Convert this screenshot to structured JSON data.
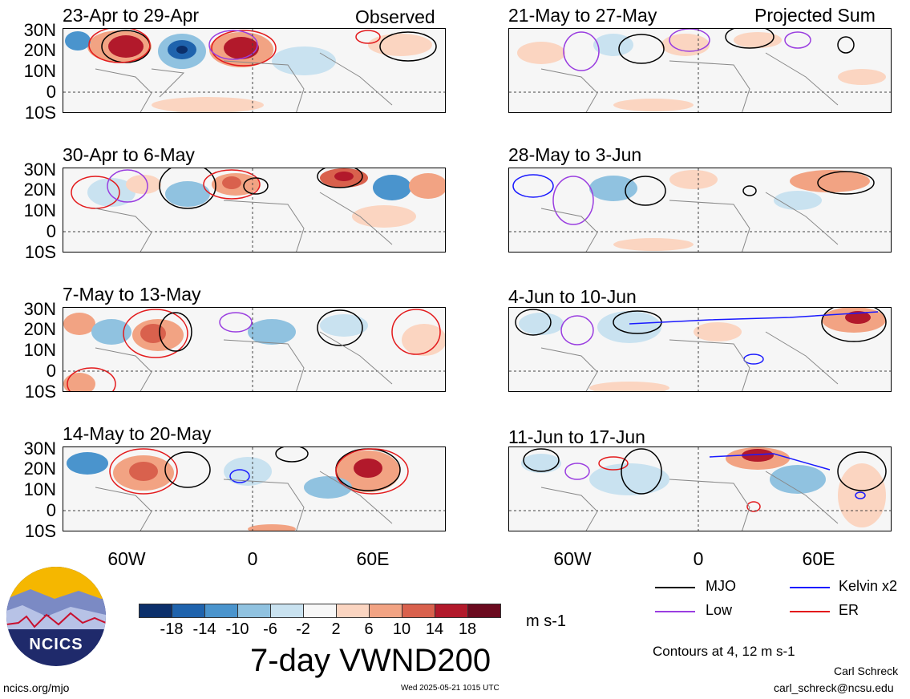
{
  "panels": [
    {
      "title": "23-Apr to 29-Apr",
      "tag": "Observed"
    },
    {
      "title": "30-Apr to 6-May",
      "tag": ""
    },
    {
      "title": "7-May to 13-May",
      "tag": ""
    },
    {
      "title": "14-May to 20-May",
      "tag": ""
    },
    {
      "title": "21-May to 27-May",
      "tag": "Projected Sum"
    },
    {
      "title": "28-May to 3-Jun",
      "tag": ""
    },
    {
      "title": "4-Jun to 10-Jun",
      "tag": ""
    },
    {
      "title": "11-Jun to 17-Jun",
      "tag": ""
    }
  ],
  "lat_labels": [
    "30N",
    "20N",
    "10N",
    "0",
    "10S"
  ],
  "lon_labels": [
    "60W",
    "0",
    "60E"
  ],
  "colorbar": {
    "colors": [
      "#0b2f6b",
      "#1f63ad",
      "#4a94cd",
      "#90c2e0",
      "#c9e2f0",
      "#f7f7f7",
      "#fbd5c1",
      "#f2a383",
      "#d9614d",
      "#b2192b",
      "#6b0a1f"
    ],
    "labels": [
      "-18",
      "-14",
      "-10",
      "-6",
      "-2",
      "2",
      "6",
      "10",
      "14",
      "18"
    ],
    "units": "m s-1"
  },
  "title": "7-day VWND200",
  "legend": [
    {
      "label": "MJO",
      "color": "#000000"
    },
    {
      "label": "Kelvin x2",
      "color": "#1a1aff"
    },
    {
      "label": "Low",
      "color": "#9a3ee0"
    },
    {
      "label": "ER",
      "color": "#e31a1c"
    }
  ],
  "contour_note": "Contours at 4, 12 m s-1",
  "author": "Carl Schreck",
  "email": "carl_schreck@ncsu.edu",
  "site": "ncics.org/mjo",
  "timestamp": "Wed 2025-05-21 1015 UTC",
  "logo_text": "NCICS"
}
